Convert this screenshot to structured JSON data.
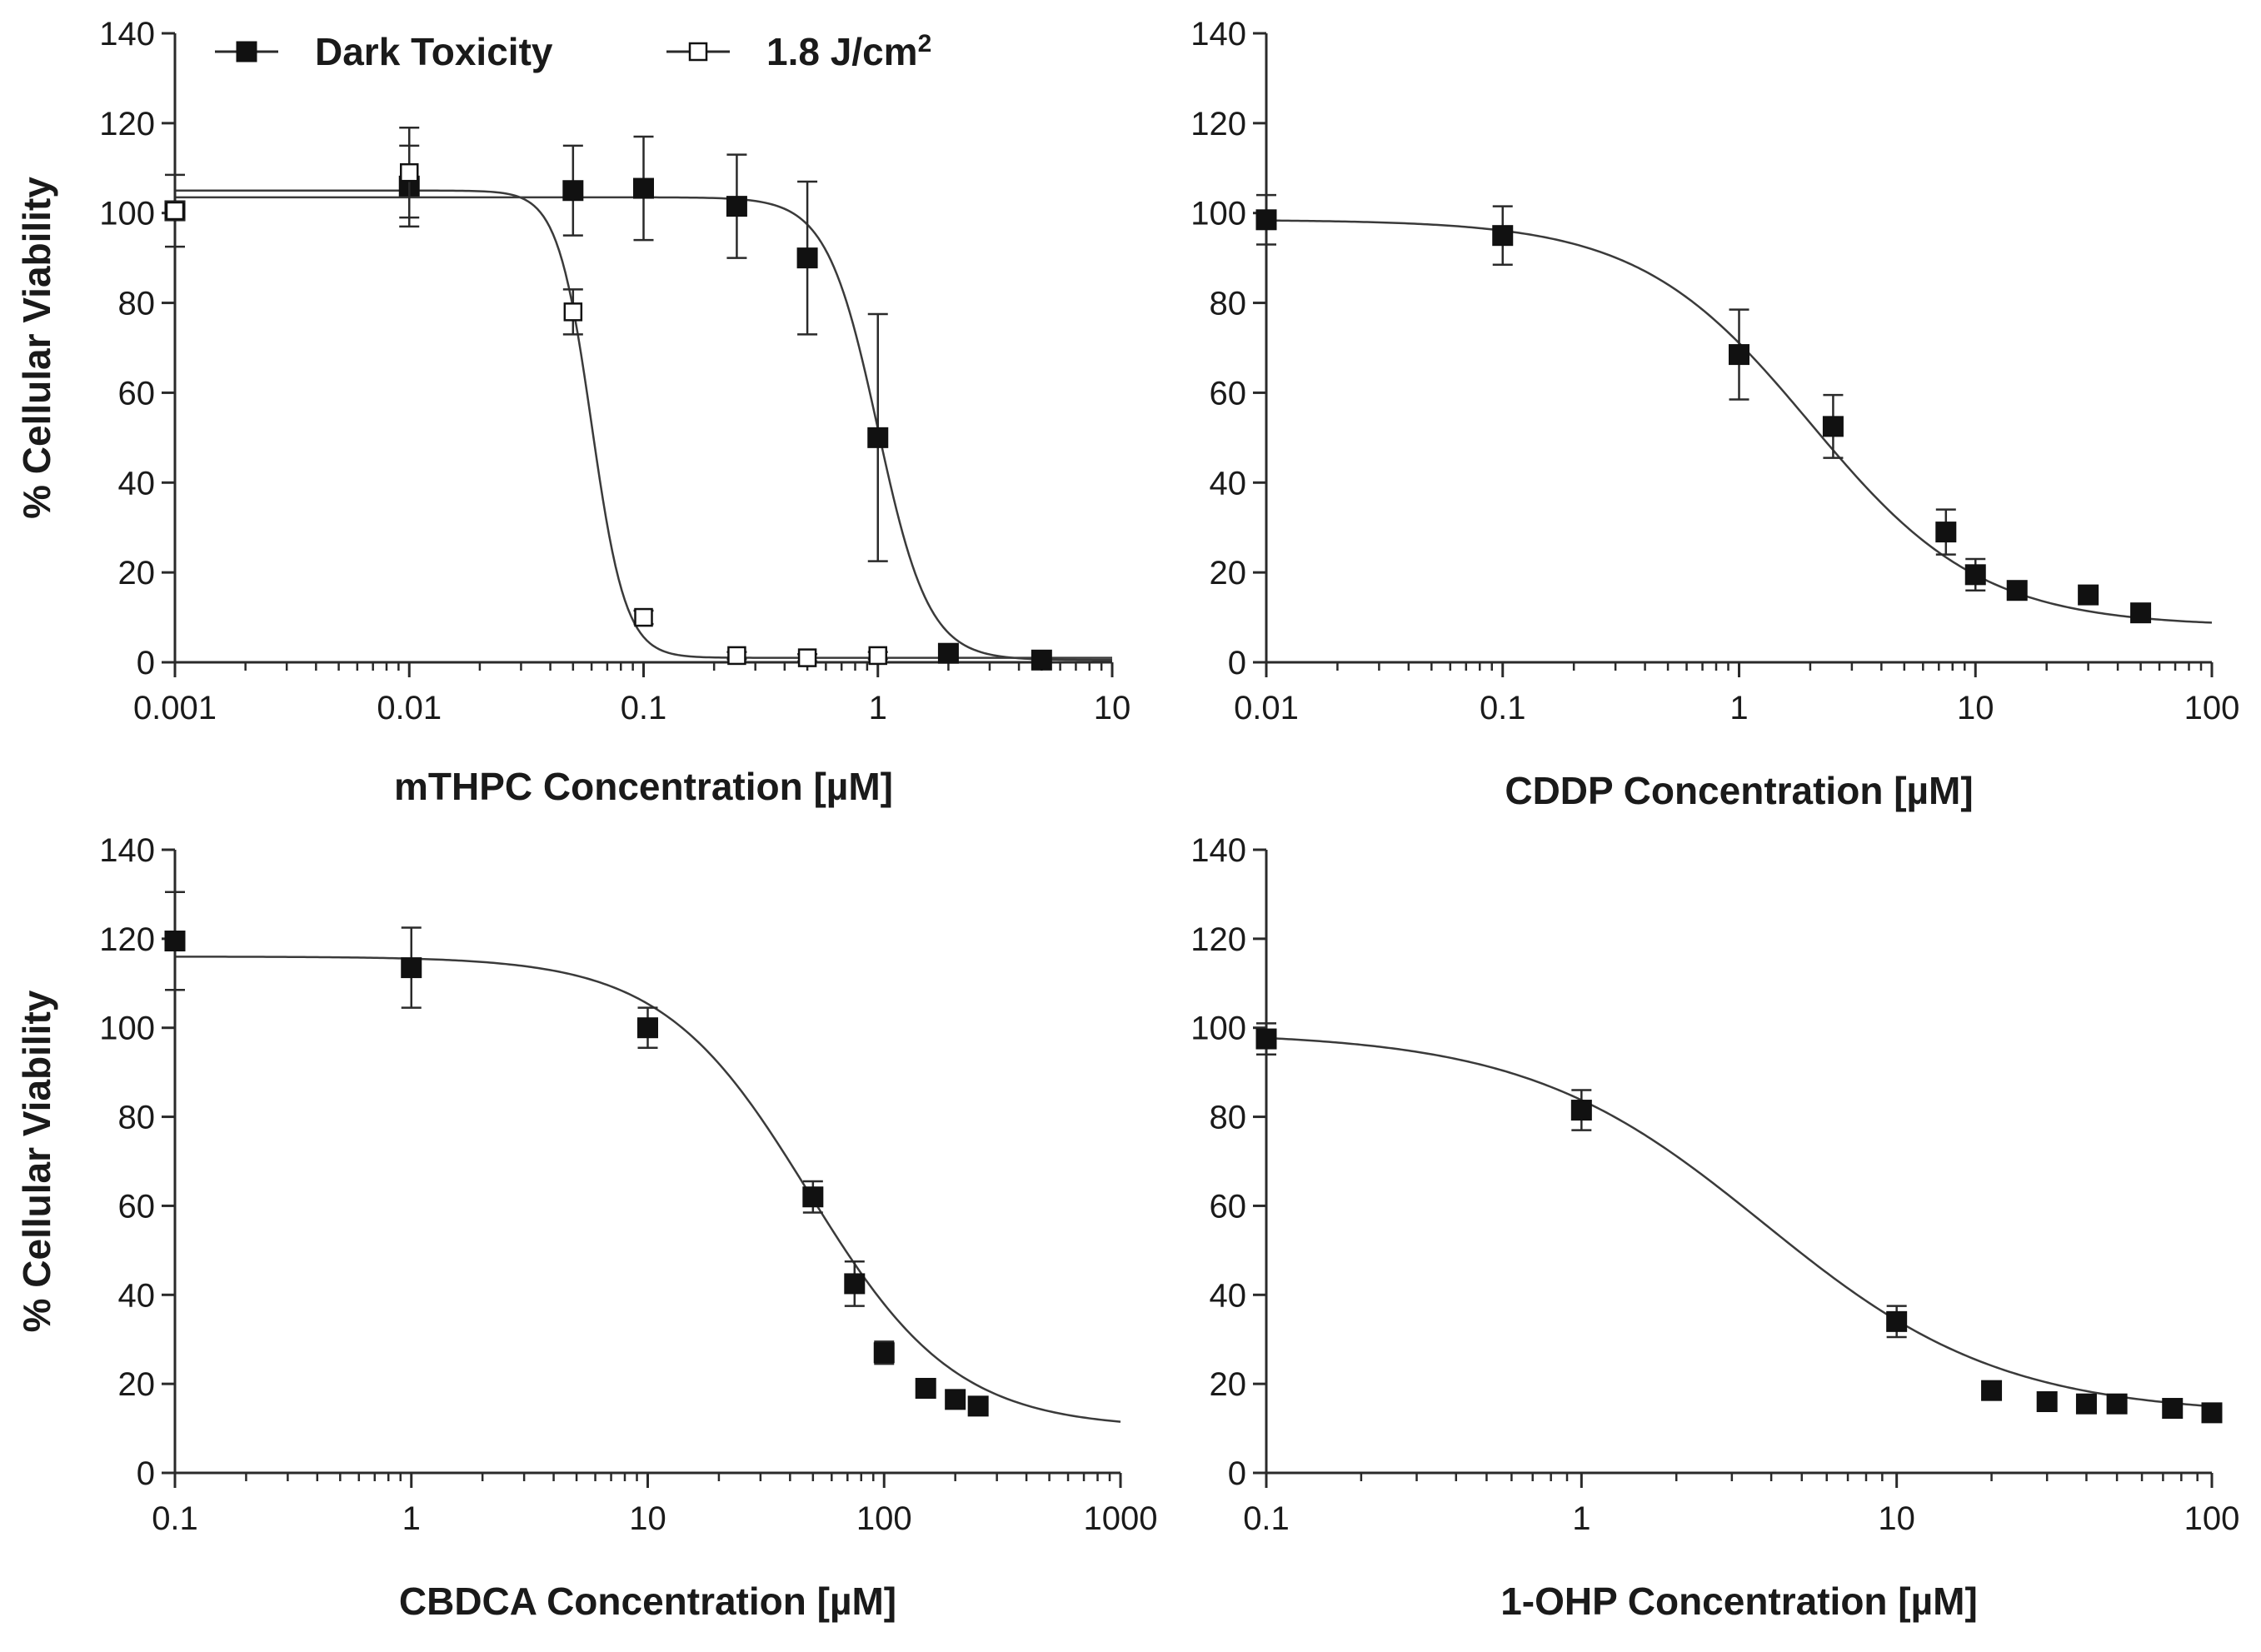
{
  "chart_data": [
    {
      "type": "scatter",
      "xscale": "log",
      "xlim": [
        0.001,
        10
      ],
      "ylim": [
        0,
        140
      ],
      "xticks": [
        "0.001",
        "0.01",
        "0.1",
        "1",
        "10"
      ],
      "yticks": [
        "0",
        "20",
        "40",
        "60",
        "80",
        "100",
        "120",
        "140"
      ],
      "xlabel": "mTHPC Concentration [µM]",
      "ylabel": "% Cellular Viability",
      "legend": {
        "position": "top-left",
        "entries": [
          {
            "label": "Dark Toxicity",
            "marker": "filled-square"
          },
          {
            "label": "1.8 J/cm",
            "superscript": "2",
            "marker": "open-square"
          }
        ]
      },
      "series": [
        {
          "name": "Dark Toxicity",
          "marker": "filled",
          "x": [
            0.001,
            0.01,
            0.05,
            0.1,
            0.25,
            0.5,
            1,
            2,
            5
          ],
          "y": [
            100.5,
            106,
            105,
            105.5,
            101.5,
            90,
            50,
            2,
            0.5
          ],
          "err": [
            8,
            9,
            10,
            11.5,
            11.5,
            17,
            27.5,
            1.5,
            1
          ],
          "fit": {
            "top": 103.5,
            "bottom": 0.5,
            "ec50": 1.0,
            "hill": 4.0
          }
        },
        {
          "name": "1.8 J/cm2",
          "marker": "open",
          "x": [
            0.001,
            0.01,
            0.05,
            0.1,
            0.25,
            0.5,
            1
          ],
          "y": [
            100.5,
            109,
            78,
            10,
            1.5,
            1,
            1.5
          ],
          "err": [
            2,
            10,
            5,
            1.5,
            0.8,
            0.8,
            0.8
          ],
          "fit": {
            "top": 105,
            "bottom": 1,
            "ec50": 0.06,
            "hill": 6.0
          }
        }
      ]
    },
    {
      "type": "scatter",
      "xscale": "log",
      "xlim": [
        0.01,
        100
      ],
      "ylim": [
        0,
        140
      ],
      "xticks": [
        "0.01",
        "0.1",
        "1",
        "10",
        "100"
      ],
      "yticks": [
        "0",
        "20",
        "40",
        "60",
        "80",
        "100",
        "120",
        "140"
      ],
      "xlabel": "CDDP Concentration [µM]",
      "ylabel": "",
      "series": [
        {
          "name": "",
          "marker": "filled",
          "x": [
            0.01,
            0.1,
            1,
            2.5,
            7.5,
            10,
            15,
            30,
            50
          ],
          "y": [
            98.5,
            95,
            68.5,
            52.5,
            29,
            19.5,
            16,
            15,
            11
          ],
          "err": [
            5.5,
            6.5,
            10,
            7,
            5,
            3.5,
            1.5,
            1.5,
            1
          ],
          "fit": {
            "top": 98.5,
            "bottom": 8,
            "ec50": 2.0,
            "hill": 1.2
          }
        }
      ]
    },
    {
      "type": "scatter",
      "xscale": "log",
      "xlim": [
        0.1,
        1000
      ],
      "ylim": [
        0,
        140
      ],
      "xticks": [
        "0.1",
        "1",
        "10",
        "100",
        "1000"
      ],
      "yticks": [
        "0",
        "20",
        "40",
        "60",
        "80",
        "100",
        "120",
        "140"
      ],
      "xlabel": "CBDCA Concentration [µM]",
      "ylabel": "% Cellular Viability",
      "series": [
        {
          "name": "",
          "marker": "filled",
          "x": [
            0.1,
            1,
            10,
            50,
            75,
            100,
            150,
            200,
            250
          ],
          "y": [
            119.5,
            113.5,
            100,
            62,
            42.5,
            27,
            19,
            16.5,
            15
          ],
          "err": [
            11,
            9,
            4.5,
            3.5,
            5,
            2.5,
            1.5,
            1,
            1
          ],
          "fit": {
            "top": 116,
            "bottom": 10,
            "ec50": 48.0,
            "hill": 1.4
          }
        }
      ]
    },
    {
      "type": "scatter",
      "xscale": "log",
      "xlim": [
        0.1,
        100
      ],
      "ylim": [
        0,
        140
      ],
      "xticks": [
        "0.1",
        "1",
        "10",
        "100"
      ],
      "yticks": [
        "0",
        "20",
        "40",
        "60",
        "80",
        "100",
        "120",
        "140"
      ],
      "xlabel": "1-OHP Concentration [µM]",
      "ylabel": "",
      "series": [
        {
          "name": "",
          "marker": "filled",
          "x": [
            0.1,
            1,
            10,
            20,
            30,
            40,
            50,
            75,
            100
          ],
          "y": [
            97.5,
            81.5,
            34,
            18.5,
            16,
            15.5,
            15.5,
            14.5,
            13.5
          ],
          "err": [
            3.5,
            4.5,
            3.5,
            1.5,
            1,
            1,
            1.5,
            1,
            1
          ],
          "fit": {
            "top": 99,
            "bottom": 13,
            "ec50": 3.8,
            "hill": 1.15
          }
        }
      ]
    }
  ]
}
